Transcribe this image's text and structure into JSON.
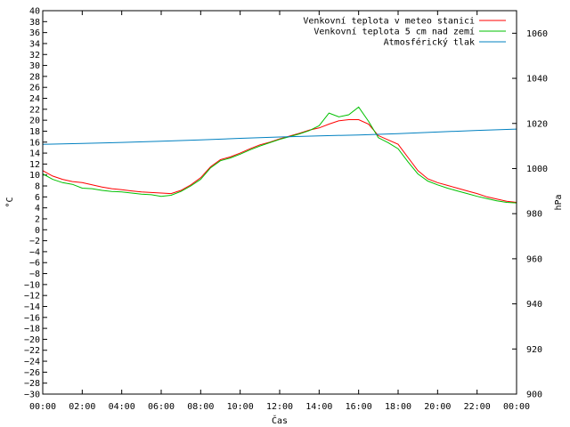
{
  "chart_data": {
    "type": "line",
    "xlabel": "Čas",
    "ylabel_left": "°C",
    "ylabel_right": "hPa",
    "xlim": [
      0,
      24
    ],
    "ylim_left": [
      -30,
      40
    ],
    "ylim_right": [
      900,
      1070
    ],
    "x_ticks": [
      "00:00",
      "02:00",
      "04:00",
      "06:00",
      "08:00",
      "10:00",
      "12:00",
      "14:00",
      "16:00",
      "18:00",
      "20:00",
      "22:00",
      "00:00"
    ],
    "y_ticks_left": [
      -30,
      -28,
      -26,
      -24,
      -22,
      -20,
      -18,
      -16,
      -14,
      -12,
      -10,
      -8,
      -6,
      -4,
      -2,
      0,
      2,
      4,
      6,
      8,
      10,
      12,
      14,
      16,
      18,
      20,
      22,
      24,
      26,
      28,
      30,
      32,
      34,
      36,
      38,
      40
    ],
    "y_ticks_right": [
      900,
      920,
      940,
      960,
      980,
      1000,
      1020,
      1040,
      1060
    ],
    "legend_position": "top-right",
    "series": [
      {
        "name": "Venkovní teplota v meteo stanici",
        "axis": "left",
        "color": "#ff0000",
        "x": [
          0,
          0.5,
          1,
          1.5,
          2,
          2.5,
          3,
          3.5,
          4,
          4.5,
          5,
          5.5,
          6,
          6.5,
          7,
          7.5,
          8,
          8.5,
          9,
          9.5,
          10,
          10.5,
          11,
          11.5,
          12,
          12.5,
          13,
          13.5,
          14,
          14.5,
          15,
          15.5,
          16,
          16.5,
          17,
          17.5,
          18,
          18.5,
          19,
          19.5,
          20,
          20.5,
          21,
          21.5,
          22,
          22.5,
          23,
          23.5,
          24
        ],
        "values": [
          10.8,
          9.8,
          9.2,
          8.8,
          8.6,
          8.2,
          7.8,
          7.5,
          7.3,
          7.1,
          6.9,
          6.8,
          6.7,
          6.6,
          7.2,
          8.2,
          9.5,
          11.5,
          12.8,
          13.3,
          14.0,
          14.8,
          15.5,
          16.0,
          16.6,
          17.1,
          17.6,
          18.2,
          18.6,
          19.3,
          19.9,
          20.1,
          20.1,
          19.3,
          17.2,
          16.4,
          15.6,
          13.2,
          10.8,
          9.3,
          8.6,
          8.1,
          7.6,
          7.1,
          6.6,
          6.0,
          5.6,
          5.2,
          5.0
        ]
      },
      {
        "name": "Venkovní teplota 5 cm nad zemí",
        "axis": "left",
        "color": "#00c000",
        "x": [
          0,
          0.5,
          1,
          1.5,
          2,
          2.5,
          3,
          3.5,
          4,
          4.5,
          5,
          5.5,
          6,
          6.5,
          7,
          7.5,
          8,
          8.5,
          9,
          9.5,
          10,
          10.5,
          11,
          11.5,
          12,
          12.5,
          13,
          13.5,
          14,
          14.5,
          15,
          15.5,
          16,
          16.5,
          17,
          17.5,
          18,
          18.5,
          19,
          19.5,
          20,
          20.5,
          21,
          21.5,
          22,
          22.5,
          23,
          23.5,
          24
        ],
        "values": [
          10.2,
          9.2,
          8.6,
          8.3,
          7.6,
          7.5,
          7.2,
          7.0,
          6.9,
          6.7,
          6.5,
          6.4,
          6.1,
          6.3,
          7.0,
          8.0,
          9.2,
          11.3,
          12.6,
          13.1,
          13.8,
          14.6,
          15.3,
          15.9,
          16.5,
          17.0,
          17.5,
          18.1,
          19.0,
          21.3,
          20.6,
          21.0,
          22.4,
          19.8,
          16.8,
          15.9,
          14.8,
          12.4,
          10.2,
          8.9,
          8.2,
          7.6,
          7.1,
          6.6,
          6.1,
          5.7,
          5.3,
          5.0,
          4.9
        ]
      },
      {
        "name": "Atmosférický tlak",
        "axis": "right",
        "color": "#0080c0",
        "x": [
          0,
          2,
          4,
          6,
          8,
          10,
          12,
          14,
          16,
          18,
          20,
          22,
          24
        ],
        "values": [
          1010.7,
          1011.1,
          1011.6,
          1012.1,
          1012.7,
          1013.4,
          1014.0,
          1014.5,
          1014.9,
          1015.5,
          1016.2,
          1016.9,
          1017.5
        ]
      }
    ]
  }
}
